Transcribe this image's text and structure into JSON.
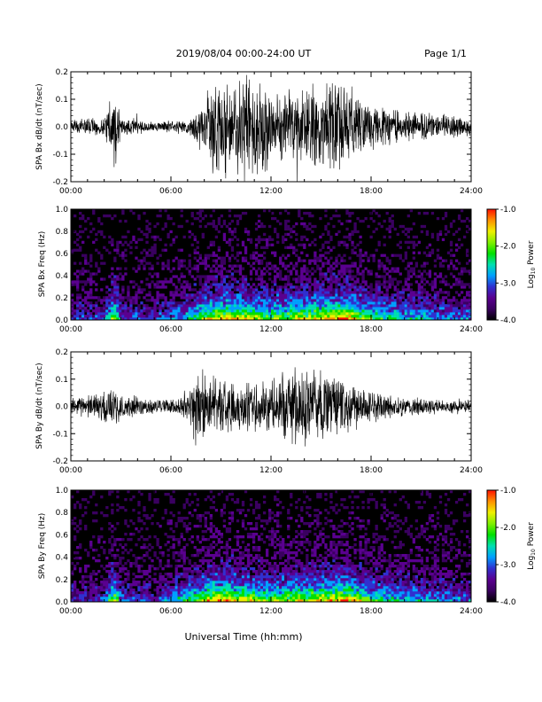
{
  "header": {
    "title": "2019/08/04  00:00-24:00 UT",
    "page": "Page 1/1"
  },
  "xlabel": "Universal Time (hh:mm)",
  "x_ticks": [
    "00:00",
    "06:00",
    "12:00",
    "18:00",
    "24:00"
  ],
  "colorbar": {
    "ticks": [
      "-1.0",
      "-2.0",
      "-3.0",
      "-4.0"
    ],
    "label_main": "Log",
    "label_sub": "10",
    "label_rest": " Power",
    "colors": [
      "#000000",
      "#3a0060",
      "#5a0090",
      "#3030d0",
      "#00a0ff",
      "#00e0b0",
      "#00e000",
      "#80f000",
      "#f0f000",
      "#ff9000",
      "#ff1000"
    ]
  },
  "chart_data": [
    {
      "type": "line",
      "title": "",
      "ylabel": "SPA Bx dB/dt (nT/sec)",
      "xlim": [
        0,
        24
      ],
      "ylim": [
        -0.2,
        0.2
      ],
      "y_ticks": [
        "0.2",
        "0.1",
        "0.0",
        "-0.1",
        "-0.2"
      ],
      "series": [
        {
          "envelope_hours": [
            0,
            2,
            2.6,
            3,
            5,
            7,
            7.5,
            8.5,
            10,
            11,
            11.5,
            12.5,
            13.5,
            15,
            16,
            16.5,
            18,
            20,
            22,
            24
          ],
          "envelope_amplitude": [
            0.03,
            0.04,
            0.2,
            0.04,
            0.02,
            0.03,
            0.06,
            0.2,
            0.2,
            0.2,
            0.2,
            0.15,
            0.15,
            0.17,
            0.2,
            0.17,
            0.1,
            0.07,
            0.05,
            0.04
          ]
        }
      ]
    },
    {
      "type": "heatmap",
      "title": "",
      "ylabel": "SPA Bx Freq (Hz)",
      "xlim": [
        0,
        24
      ],
      "ylim": [
        0,
        1.0
      ],
      "y_ticks": [
        "1.0",
        "0.8",
        "0.6",
        "0.4",
        "0.2",
        "0.0"
      ],
      "zlim": [
        -4.0,
        -1.0
      ],
      "activity_hours": [
        0,
        2,
        2.6,
        3,
        5,
        7,
        8.5,
        10,
        12,
        13.5,
        15,
        16.5,
        18,
        20,
        22,
        24
      ],
      "activity_level": [
        0.2,
        0.2,
        0.6,
        0.25,
        0.2,
        0.35,
        0.6,
        0.6,
        0.5,
        0.55,
        0.6,
        0.7,
        0.45,
        0.35,
        0.3,
        0.25
      ]
    },
    {
      "type": "line",
      "title": "",
      "ylabel": "SPA By dB/dt (nT/sec)",
      "xlim": [
        0,
        24
      ],
      "ylim": [
        -0.2,
        0.2
      ],
      "y_ticks": [
        "0.2",
        "0.1",
        "0.0",
        "-0.1",
        "-0.2"
      ],
      "series": [
        {
          "envelope_hours": [
            0,
            1,
            2.6,
            3,
            5,
            6,
            7,
            7.5,
            8.5,
            10,
            11.5,
            12.5,
            13.5,
            15,
            16.5,
            18,
            20,
            22,
            24
          ],
          "envelope_amplitude": [
            0.03,
            0.05,
            0.08,
            0.05,
            0.03,
            0.03,
            0.07,
            0.17,
            0.12,
            0.1,
            0.1,
            0.14,
            0.16,
            0.14,
            0.12,
            0.06,
            0.04,
            0.03,
            0.03
          ]
        }
      ]
    },
    {
      "type": "heatmap",
      "title": "",
      "ylabel": "SPA By Freq (Hz)",
      "xlim": [
        0,
        24
      ],
      "ylim": [
        0,
        1.0
      ],
      "y_ticks": [
        "1.0",
        "0.8",
        "0.6",
        "0.4",
        "0.2",
        "0.0"
      ],
      "zlim": [
        -4.0,
        -1.0
      ],
      "activity_hours": [
        0,
        2,
        2.6,
        3,
        5,
        7,
        8.5,
        10,
        12,
        13.5,
        15,
        16.5,
        18,
        20,
        22,
        24
      ],
      "activity_level": [
        0.2,
        0.2,
        0.6,
        0.25,
        0.2,
        0.4,
        0.65,
        0.6,
        0.5,
        0.55,
        0.6,
        0.65,
        0.45,
        0.35,
        0.3,
        0.25
      ]
    }
  ]
}
